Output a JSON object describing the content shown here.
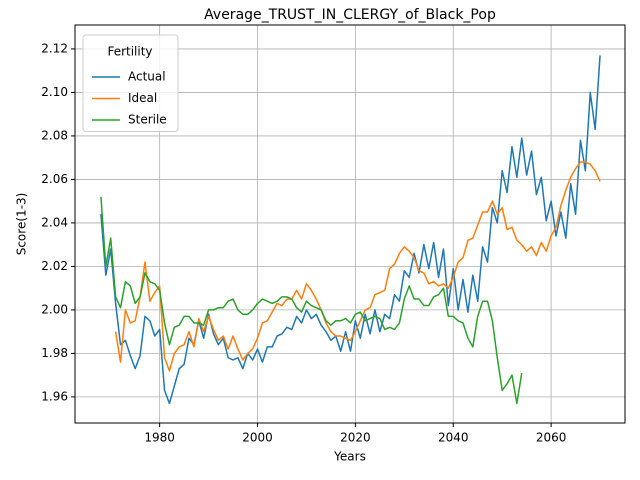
{
  "chart_data": {
    "type": "line",
    "title": "Average_TRUST_IN_CLERGY_of_Black_Pop",
    "xlabel": "Years",
    "ylabel": "Score(1-3)",
    "legend_title": "Fertility",
    "legend": "upper left",
    "grid": true,
    "xlim": [
      1962.7,
      2075.1
    ],
    "ylim": [
      1.948,
      2.131
    ],
    "xticks": [
      1980,
      2000,
      2020,
      2040,
      2060
    ],
    "yticks": [
      1.96,
      1.98,
      {
        "value": 2.0,
        "label": "2.00"
      },
      2.02,
      2.04,
      2.06,
      2.08,
      {
        "value": 2.1,
        "label": "2.10"
      },
      2.12
    ],
    "x": [
      1968,
      1969,
      1970,
      1971,
      1972,
      1973,
      1974,
      1975,
      1976,
      1977,
      1978,
      1979,
      1980,
      1981,
      1982,
      1983,
      1984,
      1985,
      1986,
      1987,
      1988,
      1989,
      1990,
      1991,
      1992,
      1993,
      1994,
      1995,
      1996,
      1997,
      1998,
      1999,
      2000,
      2001,
      2002,
      2003,
      2004,
      2005,
      2006,
      2007,
      2008,
      2009,
      2010,
      2011,
      2012,
      2013,
      2014,
      2015,
      2016,
      2017,
      2018,
      2019,
      2020,
      2021,
      2022,
      2023,
      2024,
      2025,
      2026,
      2027,
      2028,
      2029,
      2030,
      2031,
      2032,
      2033,
      2034,
      2035,
      2036,
      2037,
      2038,
      2039,
      2040,
      2041,
      2042,
      2043,
      2044,
      2045,
      2046,
      2047,
      2048,
      2049,
      2050,
      2051,
      2052,
      2053,
      2054,
      2055,
      2056,
      2057,
      2058,
      2059,
      2060,
      2061,
      2062,
      2063,
      2064,
      2065,
      2066,
      2067,
      2068,
      2069,
      2070
    ],
    "series": [
      {
        "name": "Actual",
        "color": "#1f77b4",
        "values": [
          2.044,
          2.016,
          2.028,
          2.003,
          1.984,
          1.986,
          1.979,
          1.973,
          1.979,
          1.997,
          1.995,
          1.988,
          1.991,
          1.963,
          1.957,
          1.965,
          1.973,
          1.975,
          1.987,
          1.984,
          1.995,
          1.987,
          1.998,
          1.989,
          1.984,
          1.987,
          1.978,
          1.977,
          1.978,
          1.973,
          1.98,
          1.977,
          1.982,
          1.976,
          1.983,
          1.983,
          1.988,
          1.989,
          1.992,
          1.991,
          1.997,
          1.994,
          2.0,
          1.996,
          1.998,
          1.993,
          1.99,
          1.986,
          1.988,
          1.981,
          1.99,
          1.981,
          1.995,
          1.987,
          1.998,
          1.989,
          2.0,
          1.99,
          1.998,
          1.996,
          2.007,
          2.004,
          2.018,
          2.015,
          2.026,
          2.017,
          2.03,
          2.019,
          2.031,
          2.015,
          2.028,
          2.002,
          2.019,
          2.0,
          2.014,
          1.999,
          2.016,
          2.004,
          2.029,
          2.022,
          2.047,
          2.04,
          2.064,
          2.054,
          2.075,
          2.061,
          2.079,
          2.062,
          2.073,
          2.053,
          2.061,
          2.041,
          2.05,
          2.034,
          2.045,
          2.033,
          2.058,
          2.044,
          2.078,
          2.064,
          2.1,
          2.083,
          2.117
        ]
      },
      {
        "name": "Ideal",
        "color": "#ff7f0e",
        "values": [
          null,
          null,
          null,
          1.99,
          1.976,
          2.0,
          1.994,
          1.995,
          2.006,
          2.022,
          2.004,
          2.008,
          2.011,
          1.978,
          1.972,
          1.98,
          1.983,
          1.984,
          1.99,
          1.983,
          1.996,
          1.99,
          1.997,
          1.991,
          1.986,
          1.988,
          1.982,
          1.988,
          1.982,
          1.977,
          1.98,
          1.982,
          1.987,
          1.994,
          1.995,
          1.999,
          2.003,
          2.002,
          2.005,
          2.005,
          2.009,
          2.005,
          2.012,
          2.009,
          2.005,
          2.0,
          1.994,
          1.99,
          1.988,
          1.988,
          1.987,
          1.986,
          1.99,
          1.995,
          2.0,
          2.001,
          2.007,
          2.008,
          2.009,
          2.019,
          2.021,
          2.026,
          2.029,
          2.027,
          2.024,
          2.018,
          2.017,
          2.012,
          2.013,
          2.011,
          2.012,
          2.01,
          2.015,
          2.022,
          2.024,
          2.032,
          2.033,
          2.039,
          2.045,
          2.045,
          2.05,
          2.044,
          2.047,
          2.037,
          2.038,
          2.032,
          2.03,
          2.027,
          2.029,
          2.025,
          2.031,
          2.027,
          2.034,
          2.038,
          2.048,
          2.055,
          2.061,
          2.065,
          2.068,
          2.068,
          2.067,
          2.064,
          2.059
        ]
      },
      {
        "name": "Sterile",
        "color": "#2ca02c",
        "values": [
          2.052,
          2.02,
          2.033,
          2.006,
          2.001,
          2.013,
          2.011,
          2.003,
          2.006,
          2.017,
          2.013,
          2.012,
          2.009,
          1.994,
          1.984,
          1.992,
          1.993,
          1.997,
          1.997,
          1.994,
          1.994,
          1.993,
          2.0,
          2.0,
          2.001,
          2.001,
          2.004,
          2.005,
          2.0,
          1.998,
          1.998,
          2.0,
          2.003,
          2.005,
          2.004,
          2.003,
          2.004,
          2.006,
          2.006,
          2.005,
          2.001,
          1.999,
          2.004,
          2.002,
          2.001,
          2.0,
          1.995,
          1.993,
          1.995,
          1.995,
          1.996,
          1.994,
          1.998,
          1.999,
          1.995,
          1.996,
          1.997,
          1.996,
          1.991,
          1.992,
          1.991,
          1.994,
          2.005,
          2.011,
          2.005,
          2.005,
          2.002,
          2.002,
          2.006,
          2.007,
          2.01,
          1.997,
          1.997,
          1.995,
          1.994,
          1.987,
          1.983,
          1.997,
          2.004,
          2.004,
          1.995,
          1.978,
          1.963,
          1.966,
          1.97,
          1.957,
          1.971,
          null,
          null,
          null,
          null,
          null,
          null,
          null,
          null,
          null,
          null,
          null,
          null,
          null,
          null,
          null,
          null
        ]
      }
    ]
  }
}
